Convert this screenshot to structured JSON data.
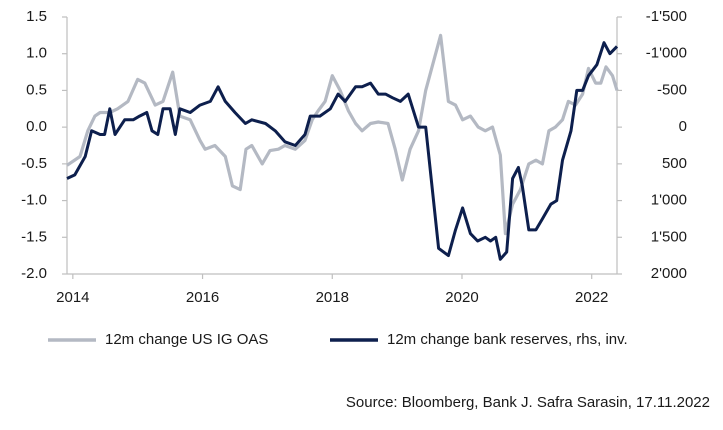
{
  "chart_data": {
    "type": "line",
    "source": "Source: Bloomberg, Bank J. Safra Sarasin, 17.11.2022",
    "xlim": [
      2013.91,
      2022.39
    ],
    "xticks": [
      2014,
      2016,
      2018,
      2020,
      2022
    ],
    "ylim": [
      -2,
      1.5
    ],
    "yticks": [
      1.5,
      {
        "value": 1,
        "label": "1.0"
      },
      0.5,
      {
        "value": 0,
        "label": "0.0"
      },
      -0.5,
      {
        "value": -1,
        "label": "-1.0"
      },
      -1.5,
      {
        "value": -2,
        "label": "-2.0"
      }
    ],
    "y2lim": [
      2000,
      -1500
    ],
    "y2_inverted": true,
    "y2ticks": [
      {
        "value": -1500,
        "label": "-1'500"
      },
      {
        "value": -1000,
        "label": "-1'000"
      },
      -500,
      0,
      500,
      {
        "value": 1000,
        "label": "1'000"
      },
      {
        "value": 1500,
        "label": "1'500"
      },
      {
        "value": 2000,
        "label": "2'000"
      }
    ],
    "legend": "bottom",
    "series": [
      {
        "name": "12m change US IG OAS",
        "color": "#b4b9c3",
        "axis": "y",
        "x": [
          2013.91,
          2014.11,
          2014.23,
          2014.34,
          2014.42,
          2014.57,
          2014.69,
          2014.85,
          2015.0,
          2015.11,
          2015.27,
          2015.39,
          2015.54,
          2015.65,
          2015.81,
          2015.96,
          2016.04,
          2016.19,
          2016.35,
          2016.46,
          2016.58,
          2016.67,
          2016.76,
          2016.92,
          2017.04,
          2017.17,
          2017.27,
          2017.43,
          2017.58,
          2017.69,
          2017.78,
          2017.89,
          2018.0,
          2018.12,
          2018.25,
          2018.36,
          2018.46,
          2018.59,
          2018.71,
          2018.86,
          2018.97,
          2019.08,
          2019.2,
          2019.33,
          2019.44,
          2019.67,
          2019.79,
          2019.9,
          2020.01,
          2020.13,
          2020.25,
          2020.36,
          2020.47,
          2020.59,
          2020.67,
          2020.78,
          2020.9,
          2021.03,
          2021.14,
          2021.24,
          2021.34,
          2021.44,
          2021.55,
          2021.64,
          2021.75,
          2021.86,
          2021.95,
          2022.06,
          2022.14,
          2022.22,
          2022.32,
          2022.39
        ],
        "values": [
          -0.52,
          -0.4,
          -0.05,
          0.15,
          0.2,
          0.2,
          0.25,
          0.35,
          0.65,
          0.6,
          0.3,
          0.35,
          0.75,
          0.15,
          0.1,
          -0.18,
          -0.3,
          -0.25,
          -0.4,
          -0.8,
          -0.85,
          -0.3,
          -0.25,
          -0.5,
          -0.32,
          -0.3,
          -0.25,
          -0.3,
          -0.18,
          0.1,
          0.22,
          0.35,
          0.7,
          0.5,
          0.22,
          0.05,
          -0.05,
          0.05,
          0.07,
          0.05,
          -0.3,
          -0.72,
          -0.3,
          -0.05,
          0.5,
          1.25,
          0.35,
          0.3,
          0.1,
          0.15,
          0,
          -0.05,
          0,
          -0.38,
          -1.45,
          -1.05,
          -0.85,
          -0.5,
          -0.45,
          -0.5,
          -0.05,
          0,
          0.1,
          0.35,
          0.3,
          0.45,
          0.8,
          0.6,
          0.6,
          0.82,
          0.7,
          0.5
        ]
      },
      {
        "name": "12m change bank reserves, rhs, inv.",
        "color": "#0d1f4d",
        "axis": "y2",
        "x": [
          2013.91,
          2014.03,
          2014.19,
          2014.29,
          2014.42,
          2014.49,
          2014.57,
          2014.65,
          2014.8,
          2014.93,
          2015.03,
          2015.14,
          2015.22,
          2015.31,
          2015.39,
          2015.5,
          2015.58,
          2015.65,
          2015.81,
          2015.96,
          2016.12,
          2016.24,
          2016.35,
          2016.5,
          2016.66,
          2016.76,
          2016.97,
          2017.12,
          2017.27,
          2017.43,
          2017.58,
          2017.66,
          2017.81,
          2017.97,
          2018.09,
          2018.2,
          2018.36,
          2018.46,
          2018.59,
          2018.71,
          2018.82,
          2018.93,
          2019.05,
          2019.17,
          2019.33,
          2019.44,
          2019.64,
          2019.79,
          2019.9,
          2020.01,
          2020.13,
          2020.24,
          2020.36,
          2020.44,
          2020.52,
          2020.59,
          2020.69,
          2020.78,
          2020.87,
          2020.93,
          2021.03,
          2021.14,
          2021.24,
          2021.37,
          2021.46,
          2021.55,
          2021.68,
          2021.77,
          2021.86,
          2021.95,
          2022.08,
          2022.19,
          2022.28,
          2022.39
        ],
        "values": [
          700,
          650,
          400,
          50,
          100,
          100,
          -250,
          100,
          -100,
          -100,
          -150,
          -200,
          50,
          100,
          -250,
          -250,
          100,
          -250,
          -200,
          -300,
          -350,
          -550,
          -350,
          -200,
          -50,
          -100,
          -50,
          50,
          200,
          250,
          100,
          -150,
          -150,
          -250,
          -450,
          -350,
          -550,
          -550,
          -600,
          -450,
          -450,
          -400,
          -350,
          -450,
          0,
          0,
          1650,
          1750,
          1400,
          1100,
          1450,
          1550,
          1500,
          1550,
          1500,
          1800,
          1700,
          700,
          550,
          800,
          1400,
          1400,
          1250,
          1050,
          1000,
          450,
          50,
          -500,
          -500,
          -700,
          -850,
          -1150,
          -1000,
          -1100
        ]
      }
    ]
  }
}
